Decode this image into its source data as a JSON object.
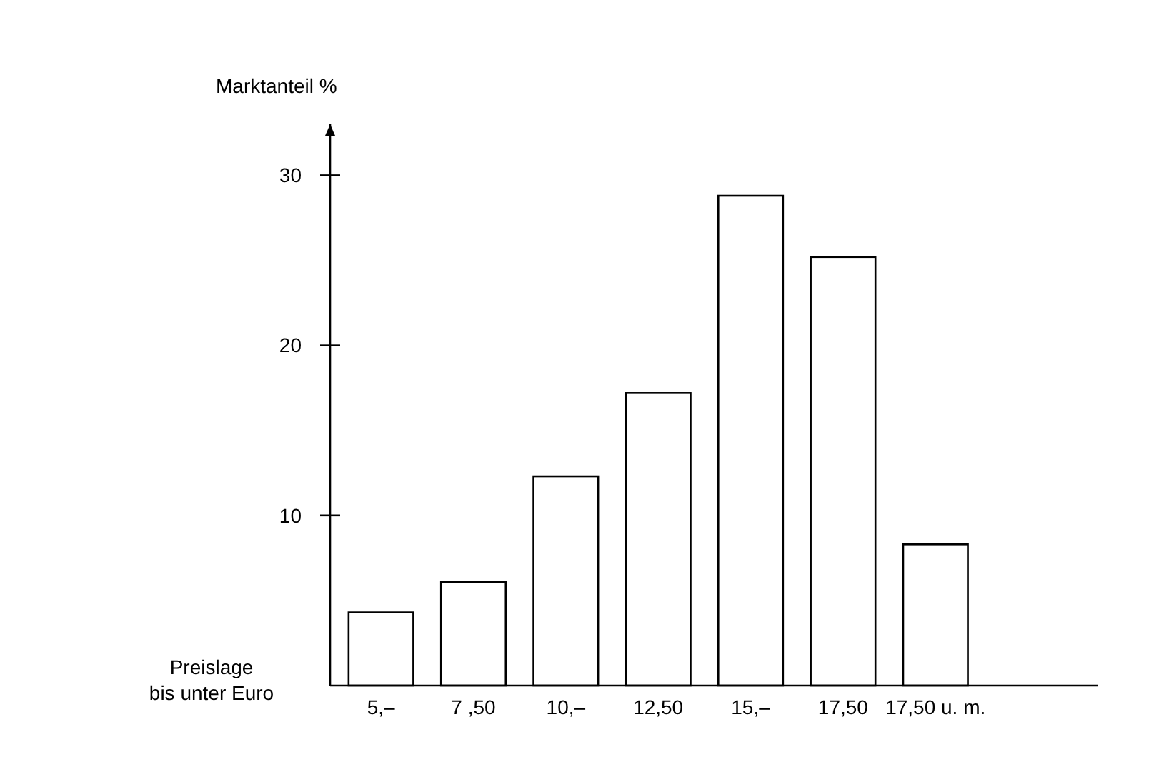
{
  "chart_data": {
    "type": "bar",
    "ylabel": "Marktanteil %",
    "xlabel": "Preislage\nbis unter Euro",
    "categories": [
      "5,–",
      "7 ,50",
      "10,–",
      "12,50",
      "15,–",
      "17,50",
      "17,50 u. m."
    ],
    "values": [
      4.3,
      6.1,
      12.3,
      17.2,
      28.8,
      25.2,
      8.3
    ],
    "color": "#ffffff",
    "ylim": [
      0,
      33
    ],
    "yticks": [
      10,
      20,
      30
    ],
    "grid": false
  }
}
